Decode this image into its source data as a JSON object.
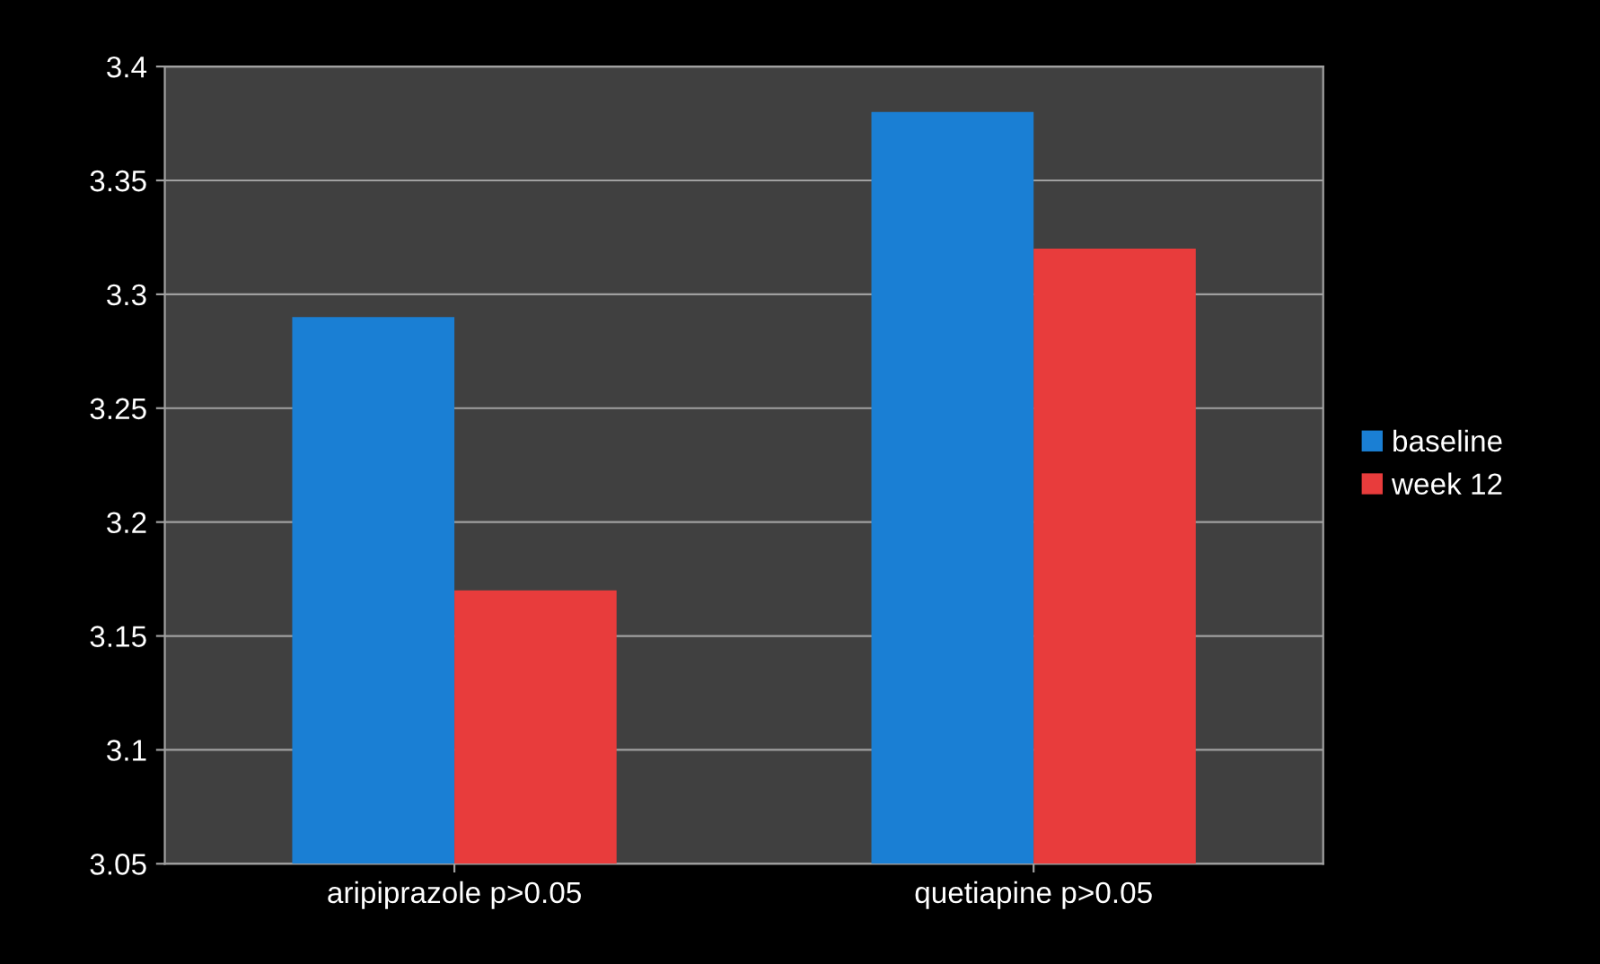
{
  "chart_data": {
    "type": "bar",
    "categories": [
      "aripiprazole p>0.05",
      "quetiapine p>0.05"
    ],
    "series": [
      {
        "name": "baseline",
        "color": "#1a7fd4",
        "values": [
          3.29,
          3.38
        ]
      },
      {
        "name": "week 12",
        "color": "#e83c3c",
        "values": [
          3.17,
          3.32
        ]
      }
    ],
    "ylim": [
      3.05,
      3.4
    ],
    "yticks": [
      3.05,
      3.1,
      3.15,
      3.2,
      3.25,
      3.3,
      3.35,
      3.4
    ],
    "grid": "y",
    "legend": "right"
  }
}
